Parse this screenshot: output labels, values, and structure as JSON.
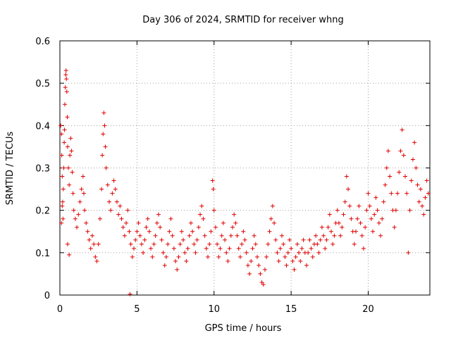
{
  "chart_data": {
    "type": "scatter",
    "title": "Day 306 of 2024, SRMTID for receiver whng",
    "xlabel": "GPS time / hours",
    "ylabel": "SRMTID / TECUs",
    "xlim": [
      0,
      24
    ],
    "ylim": [
      0,
      0.6
    ],
    "xticks": [
      0,
      5,
      10,
      15,
      20
    ],
    "xtick_labels": [
      "0",
      "5",
      "10",
      "15",
      "20"
    ],
    "yticks": [
      0,
      0.1,
      0.2,
      0.3,
      0.4,
      0.5,
      0.6
    ],
    "ytick_labels": [
      "0",
      "0.1",
      "0.2",
      "0.3",
      "0.4",
      "0.5",
      "0.6"
    ],
    "grid": true,
    "marker": "+",
    "color": "#e00000",
    "series": [
      {
        "name": "SRMTID",
        "points": [
          [
            0.05,
            0.4
          ],
          [
            0.1,
            0.38
          ],
          [
            0.12,
            0.33
          ],
          [
            0.15,
            0.28
          ],
          [
            0.18,
            0.22
          ],
          [
            0.2,
            0.18
          ],
          [
            0.22,
            0.25
          ],
          [
            0.25,
            0.3
          ],
          [
            0.28,
            0.36
          ],
          [
            0.3,
            0.39
          ],
          [
            0.32,
            0.45
          ],
          [
            0.35,
            0.49
          ],
          [
            0.38,
            0.52
          ],
          [
            0.4,
            0.53
          ],
          [
            0.42,
            0.51
          ],
          [
            0.45,
            0.48
          ],
          [
            0.48,
            0.42
          ],
          [
            0.5,
            0.35
          ],
          [
            0.55,
            0.3
          ],
          [
            0.6,
            0.26
          ],
          [
            0.65,
            0.33
          ],
          [
            0.7,
            0.37
          ],
          [
            0.75,
            0.34
          ],
          [
            0.8,
            0.29
          ],
          [
            0.85,
            0.24
          ],
          [
            0.9,
            0.2
          ],
          [
            0.6,
            0.095
          ],
          [
            0.5,
            0.12
          ],
          [
            0.1,
            0.17
          ],
          [
            0.15,
            0.21
          ],
          [
            1.0,
            0.18
          ],
          [
            1.1,
            0.16
          ],
          [
            1.2,
            0.19
          ],
          [
            1.3,
            0.22
          ],
          [
            1.4,
            0.25
          ],
          [
            1.5,
            0.28
          ],
          [
            1.55,
            0.24
          ],
          [
            1.6,
            0.2
          ],
          [
            1.7,
            0.17
          ],
          [
            1.8,
            0.15
          ],
          [
            1.9,
            0.13
          ],
          [
            2.0,
            0.11
          ],
          [
            2.1,
            0.14
          ],
          [
            2.2,
            0.12
          ],
          [
            2.3,
            0.09
          ],
          [
            2.4,
            0.08
          ],
          [
            2.5,
            0.12
          ],
          [
            2.6,
            0.18
          ],
          [
            2.7,
            0.25
          ],
          [
            2.75,
            0.33
          ],
          [
            2.8,
            0.38
          ],
          [
            2.85,
            0.43
          ],
          [
            2.9,
            0.4
          ],
          [
            2.95,
            0.35
          ],
          [
            3.0,
            0.3
          ],
          [
            3.1,
            0.26
          ],
          [
            3.2,
            0.22
          ],
          [
            3.3,
            0.2
          ],
          [
            3.4,
            0.24
          ],
          [
            3.5,
            0.27
          ],
          [
            3.6,
            0.25
          ],
          [
            3.7,
            0.22
          ],
          [
            3.8,
            0.19
          ],
          [
            3.9,
            0.21
          ],
          [
            4.0,
            0.18
          ],
          [
            4.1,
            0.16
          ],
          [
            4.2,
            0.14
          ],
          [
            4.3,
            0.17
          ],
          [
            4.4,
            0.2
          ],
          [
            4.5,
            0.15
          ],
          [
            4.55,
            0.002
          ],
          [
            4.6,
            0.12
          ],
          [
            4.7,
            0.09
          ],
          [
            4.8,
            0.11
          ],
          [
            4.9,
            0.13
          ],
          [
            5.0,
            0.15
          ],
          [
            5.1,
            0.17
          ],
          [
            5.2,
            0.14
          ],
          [
            5.3,
            0.12
          ],
          [
            5.4,
            0.1
          ],
          [
            5.5,
            0.13
          ],
          [
            5.6,
            0.16
          ],
          [
            5.7,
            0.18
          ],
          [
            5.8,
            0.15
          ],
          [
            5.9,
            0.11
          ],
          [
            6.0,
            0.09
          ],
          [
            6.1,
            0.12
          ],
          [
            6.2,
            0.14
          ],
          [
            6.3,
            0.17
          ],
          [
            6.4,
            0.19
          ],
          [
            6.5,
            0.16
          ],
          [
            6.6,
            0.13
          ],
          [
            6.7,
            0.1
          ],
          [
            6.8,
            0.07
          ],
          [
            6.9,
            0.09
          ],
          [
            7.0,
            0.12
          ],
          [
            7.1,
            0.15
          ],
          [
            7.2,
            0.18
          ],
          [
            7.3,
            0.14
          ],
          [
            7.4,
            0.11
          ],
          [
            7.5,
            0.08
          ],
          [
            7.6,
            0.06
          ],
          [
            7.7,
            0.09
          ],
          [
            7.8,
            0.12
          ],
          [
            7.9,
            0.15
          ],
          [
            8.0,
            0.13
          ],
          [
            8.1,
            0.1
          ],
          [
            8.2,
            0.08
          ],
          [
            8.3,
            0.11
          ],
          [
            8.4,
            0.14
          ],
          [
            8.5,
            0.17
          ],
          [
            8.6,
            0.15
          ],
          [
            8.7,
            0.12
          ],
          [
            8.8,
            0.1
          ],
          [
            8.9,
            0.13
          ],
          [
            9.0,
            0.16
          ],
          [
            9.1,
            0.19
          ],
          [
            9.2,
            0.21
          ],
          [
            9.3,
            0.18
          ],
          [
            9.4,
            0.14
          ],
          [
            9.5,
            0.11
          ],
          [
            9.6,
            0.09
          ],
          [
            9.7,
            0.12
          ],
          [
            9.8,
            0.15
          ],
          [
            9.9,
            0.27
          ],
          [
            9.95,
            0.25
          ],
          [
            10.0,
            0.2
          ],
          [
            10.1,
            0.16
          ],
          [
            10.2,
            0.12
          ],
          [
            10.3,
            0.09
          ],
          [
            10.4,
            0.11
          ],
          [
            10.5,
            0.14
          ],
          [
            10.6,
            0.17
          ],
          [
            10.7,
            0.13
          ],
          [
            10.8,
            0.1
          ],
          [
            10.9,
            0.08
          ],
          [
            11.0,
            0.11
          ],
          [
            11.1,
            0.14
          ],
          [
            11.2,
            0.16
          ],
          [
            11.3,
            0.19
          ],
          [
            11.4,
            0.17
          ],
          [
            11.5,
            0.14
          ],
          [
            11.6,
            0.11
          ],
          [
            11.7,
            0.09
          ],
          [
            11.8,
            0.12
          ],
          [
            11.9,
            0.15
          ],
          [
            12.0,
            0.13
          ],
          [
            12.1,
            0.1
          ],
          [
            12.2,
            0.07
          ],
          [
            12.3,
            0.05
          ],
          [
            12.4,
            0.08
          ],
          [
            12.5,
            0.11
          ],
          [
            12.6,
            0.14
          ],
          [
            12.7,
            0.12
          ],
          [
            12.8,
            0.09
          ],
          [
            12.9,
            0.07
          ],
          [
            13.0,
            0.05
          ],
          [
            13.1,
            0.03
          ],
          [
            13.2,
            0.025
          ],
          [
            13.3,
            0.06
          ],
          [
            13.4,
            0.09
          ],
          [
            13.5,
            0.12
          ],
          [
            13.6,
            0.15
          ],
          [
            13.7,
            0.18
          ],
          [
            13.8,
            0.21
          ],
          [
            13.9,
            0.17
          ],
          [
            14.0,
            0.13
          ],
          [
            14.1,
            0.1
          ],
          [
            14.2,
            0.08
          ],
          [
            14.3,
            0.11
          ],
          [
            14.4,
            0.14
          ],
          [
            14.5,
            0.12
          ],
          [
            14.6,
            0.09
          ],
          [
            14.7,
            0.07
          ],
          [
            14.8,
            0.1
          ],
          [
            14.9,
            0.13
          ],
          [
            15.0,
            0.11
          ],
          [
            15.1,
            0.08
          ],
          [
            15.2,
            0.06
          ],
          [
            15.3,
            0.09
          ],
          [
            15.4,
            0.12
          ],
          [
            15.5,
            0.1
          ],
          [
            15.6,
            0.08
          ],
          [
            15.7,
            0.11
          ],
          [
            15.8,
            0.13
          ],
          [
            15.9,
            0.1
          ],
          [
            16.0,
            0.07
          ],
          [
            16.1,
            0.1
          ],
          [
            16.2,
            0.13
          ],
          [
            16.3,
            0.11
          ],
          [
            16.4,
            0.09
          ],
          [
            16.5,
            0.12
          ],
          [
            16.6,
            0.14
          ],
          [
            16.7,
            0.12
          ],
          [
            16.8,
            0.1
          ],
          [
            16.9,
            0.13
          ],
          [
            17.0,
            0.16
          ],
          [
            17.1,
            0.14
          ],
          [
            17.2,
            0.11
          ],
          [
            17.3,
            0.13
          ],
          [
            17.4,
            0.16
          ],
          [
            17.5,
            0.19
          ],
          [
            17.6,
            0.15
          ],
          [
            17.7,
            0.12
          ],
          [
            17.8,
            0.14
          ],
          [
            17.9,
            0.17
          ],
          [
            18.0,
            0.2
          ],
          [
            18.1,
            0.17
          ],
          [
            18.2,
            0.14
          ],
          [
            18.3,
            0.16
          ],
          [
            18.4,
            0.19
          ],
          [
            18.5,
            0.22
          ],
          [
            18.6,
            0.28
          ],
          [
            18.7,
            0.25
          ],
          [
            18.8,
            0.21
          ],
          [
            18.9,
            0.18
          ],
          [
            19.0,
            0.15
          ],
          [
            19.1,
            0.12
          ],
          [
            19.2,
            0.15
          ],
          [
            19.3,
            0.18
          ],
          [
            19.4,
            0.21
          ],
          [
            19.5,
            0.17
          ],
          [
            19.6,
            0.14
          ],
          [
            19.7,
            0.11
          ],
          [
            19.8,
            0.16
          ],
          [
            19.9,
            0.2
          ],
          [
            20.0,
            0.24
          ],
          [
            20.1,
            0.21
          ],
          [
            20.2,
            0.18
          ],
          [
            20.3,
            0.15
          ],
          [
            20.4,
            0.19
          ],
          [
            20.5,
            0.23
          ],
          [
            20.6,
            0.2
          ],
          [
            20.7,
            0.17
          ],
          [
            20.8,
            0.14
          ],
          [
            20.9,
            0.18
          ],
          [
            21.0,
            0.22
          ],
          [
            21.1,
            0.26
          ],
          [
            21.2,
            0.3
          ],
          [
            21.3,
            0.34
          ],
          [
            21.4,
            0.28
          ],
          [
            21.5,
            0.24
          ],
          [
            21.6,
            0.2
          ],
          [
            21.7,
            0.16
          ],
          [
            21.8,
            0.2
          ],
          [
            21.9,
            0.24
          ],
          [
            22.0,
            0.29
          ],
          [
            22.1,
            0.34
          ],
          [
            22.2,
            0.39
          ],
          [
            22.3,
            0.33
          ],
          [
            22.4,
            0.28
          ],
          [
            22.5,
            0.24
          ],
          [
            22.6,
            0.1
          ],
          [
            22.7,
            0.2
          ],
          [
            22.8,
            0.27
          ],
          [
            22.9,
            0.32
          ],
          [
            23.0,
            0.36
          ],
          [
            23.1,
            0.3
          ],
          [
            23.2,
            0.26
          ],
          [
            23.3,
            0.22
          ],
          [
            23.4,
            0.25
          ],
          [
            23.5,
            0.21
          ],
          [
            23.6,
            0.19
          ],
          [
            23.7,
            0.23
          ],
          [
            23.8,
            0.27
          ],
          [
            23.9,
            0.24
          ]
        ]
      }
    ]
  }
}
